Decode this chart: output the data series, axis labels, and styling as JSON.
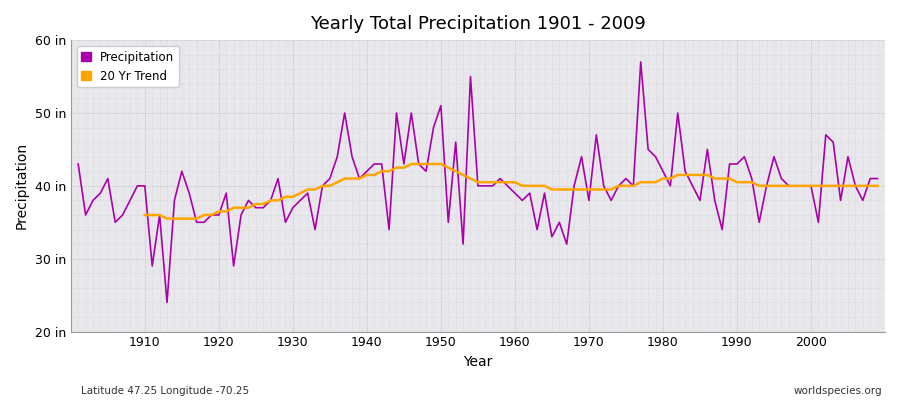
{
  "title": "Yearly Total Precipitation 1901 - 2009",
  "xlabel": "Year",
  "ylabel": "Precipitation",
  "subtitle_left": "Latitude 47.25 Longitude -70.25",
  "subtitle_right": "worldspecies.org",
  "bg_color": "#f5f5f5",
  "plot_bg_color": "#e8e8ec",
  "outer_bg_color": "#ffffff",
  "precip_color": "#aa00aa",
  "trend_color": "#ffa500",
  "ylim": [
    20,
    60
  ],
  "yticks": [
    20,
    30,
    40,
    50,
    60
  ],
  "ytick_labels": [
    "20 in",
    "30 in",
    "40 in",
    "50 in",
    "60 in"
  ],
  "xlim": [
    1900,
    2010
  ],
  "xticks": [
    1910,
    1920,
    1930,
    1940,
    1950,
    1960,
    1970,
    1980,
    1990,
    2000
  ],
  "years": [
    1901,
    1902,
    1903,
    1904,
    1905,
    1906,
    1907,
    1908,
    1909,
    1910,
    1911,
    1912,
    1913,
    1914,
    1915,
    1916,
    1917,
    1918,
    1919,
    1920,
    1921,
    1922,
    1923,
    1924,
    1925,
    1926,
    1927,
    1928,
    1929,
    1930,
    1931,
    1932,
    1933,
    1934,
    1935,
    1936,
    1937,
    1938,
    1939,
    1940,
    1941,
    1942,
    1943,
    1944,
    1945,
    1946,
    1947,
    1948,
    1949,
    1950,
    1951,
    1952,
    1953,
    1954,
    1955,
    1956,
    1957,
    1958,
    1959,
    1960,
    1961,
    1962,
    1963,
    1964,
    1965,
    1966,
    1967,
    1968,
    1969,
    1970,
    1971,
    1972,
    1973,
    1974,
    1975,
    1976,
    1977,
    1978,
    1979,
    1980,
    1981,
    1982,
    1983,
    1984,
    1985,
    1986,
    1987,
    1988,
    1989,
    1990,
    1991,
    1992,
    1993,
    1994,
    1995,
    1996,
    1997,
    1998,
    1999,
    2000,
    2001,
    2002,
    2003,
    2004,
    2005,
    2006,
    2007,
    2008,
    2009
  ],
  "precip": [
    43,
    36,
    38,
    39,
    41,
    35,
    36,
    38,
    40,
    40,
    29,
    36,
    24,
    38,
    42,
    39,
    35,
    35,
    36,
    36,
    39,
    29,
    36,
    38,
    37,
    37,
    38,
    41,
    35,
    37,
    38,
    39,
    34,
    40,
    41,
    44,
    50,
    44,
    41,
    42,
    43,
    43,
    34,
    50,
    43,
    50,
    43,
    42,
    48,
    51,
    35,
    46,
    32,
    55,
    40,
    40,
    40,
    41,
    40,
    39,
    38,
    39,
    34,
    39,
    33,
    35,
    32,
    40,
    44,
    38,
    47,
    40,
    38,
    40,
    41,
    40,
    57,
    45,
    44,
    42,
    40,
    50,
    42,
    40,
    38,
    45,
    38,
    34,
    43,
    43,
    44,
    41,
    35,
    40,
    44,
    41,
    40,
    40,
    40,
    40,
    35,
    47,
    46,
    38,
    44,
    40,
    38,
    41,
    41
  ],
  "trend": [
    null,
    null,
    null,
    null,
    null,
    null,
    null,
    null,
    null,
    36,
    36,
    36,
    35.5,
    35.5,
    35.5,
    35.5,
    35.5,
    36,
    36,
    36.5,
    36.5,
    37,
    37,
    37,
    37.5,
    37.5,
    38,
    38,
    38.5,
    38.5,
    39,
    39.5,
    39.5,
    40,
    40,
    40.5,
    41,
    41,
    41,
    41.5,
    41.5,
    42,
    42,
    42.5,
    42.5,
    43,
    43,
    43,
    43,
    43,
    42.5,
    42,
    41.5,
    41,
    40.5,
    40.5,
    40.5,
    40.5,
    40.5,
    40.5,
    40,
    40,
    40,
    40,
    39.5,
    39.5,
    39.5,
    39.5,
    39.5,
    39.5,
    39.5,
    39.5,
    39.5,
    40,
    40,
    40,
    40.5,
    40.5,
    40.5,
    41,
    41,
    41.5,
    41.5,
    41.5,
    41.5,
    41.5,
    41,
    41,
    41,
    40.5,
    40.5,
    40.5,
    40,
    40,
    40,
    40,
    40,
    40,
    40,
    40,
    40,
    40,
    40,
    40,
    40,
    40,
    40,
    40,
    40
  ]
}
